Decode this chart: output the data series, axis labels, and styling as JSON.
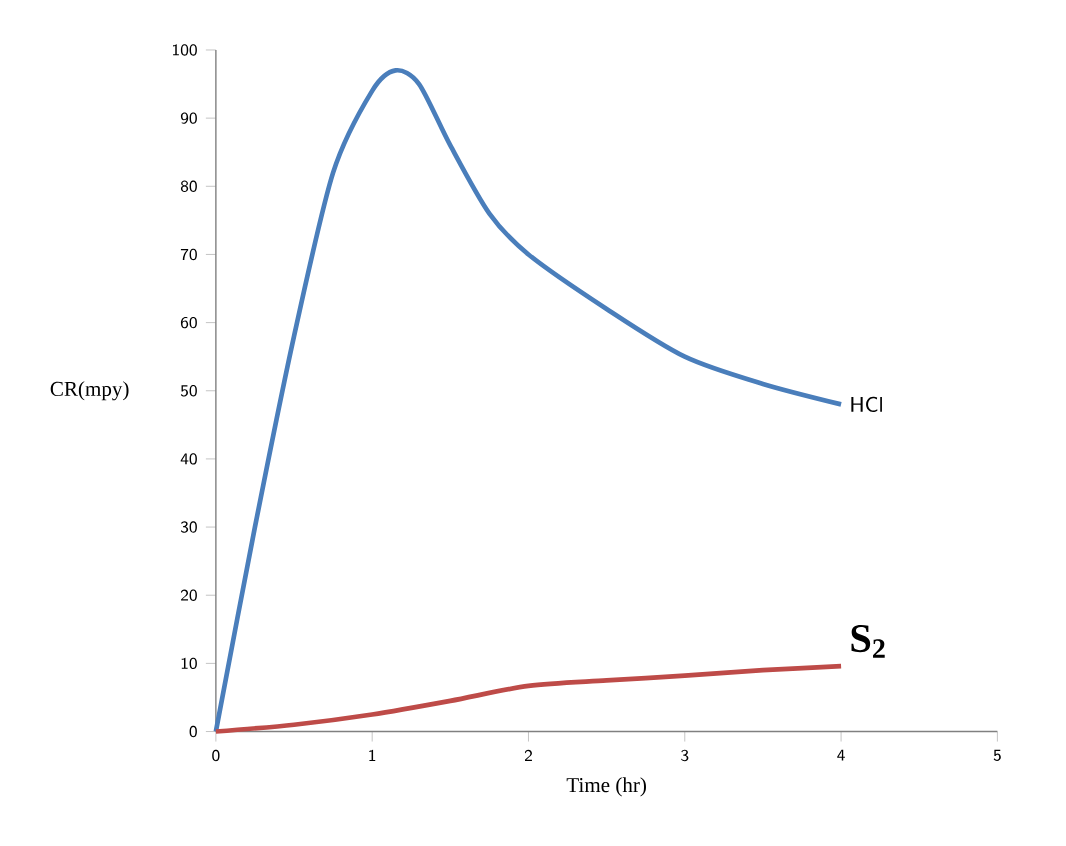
{
  "chart_data": {
    "type": "line",
    "xlabel": "Time (hr)",
    "ylabel": "CR(mpy)",
    "xlim": [
      0,
      5
    ],
    "ylim": [
      0,
      100
    ],
    "xticks": [
      0,
      1,
      2,
      3,
      4,
      5
    ],
    "yticks": [
      0,
      10,
      20,
      30,
      40,
      50,
      60,
      70,
      80,
      90,
      100
    ],
    "grid": false,
    "marker": "none",
    "line_style": "solid",
    "series": [
      {
        "name": "HCl",
        "color": "#4a7ebb",
        "x": [
          0,
          0.25,
          0.5,
          0.75,
          1,
          1.15,
          1.3,
          1.5,
          1.75,
          2,
          2.5,
          3,
          3.5,
          4
        ],
        "values": [
          0,
          30,
          58,
          82,
          94,
          97,
          95,
          86,
          76,
          70,
          62,
          55,
          51,
          48
        ]
      },
      {
        "name": "S$_{2}$",
        "color": "#be4b48",
        "x": [
          0,
          0.5,
          1,
          1.5,
          2,
          2.5,
          3,
          3.5,
          4
        ],
        "values": [
          0,
          1,
          2.5,
          4.5,
          6.7,
          7.5,
          8.2,
          9,
          9.6
        ]
      }
    ]
  }
}
